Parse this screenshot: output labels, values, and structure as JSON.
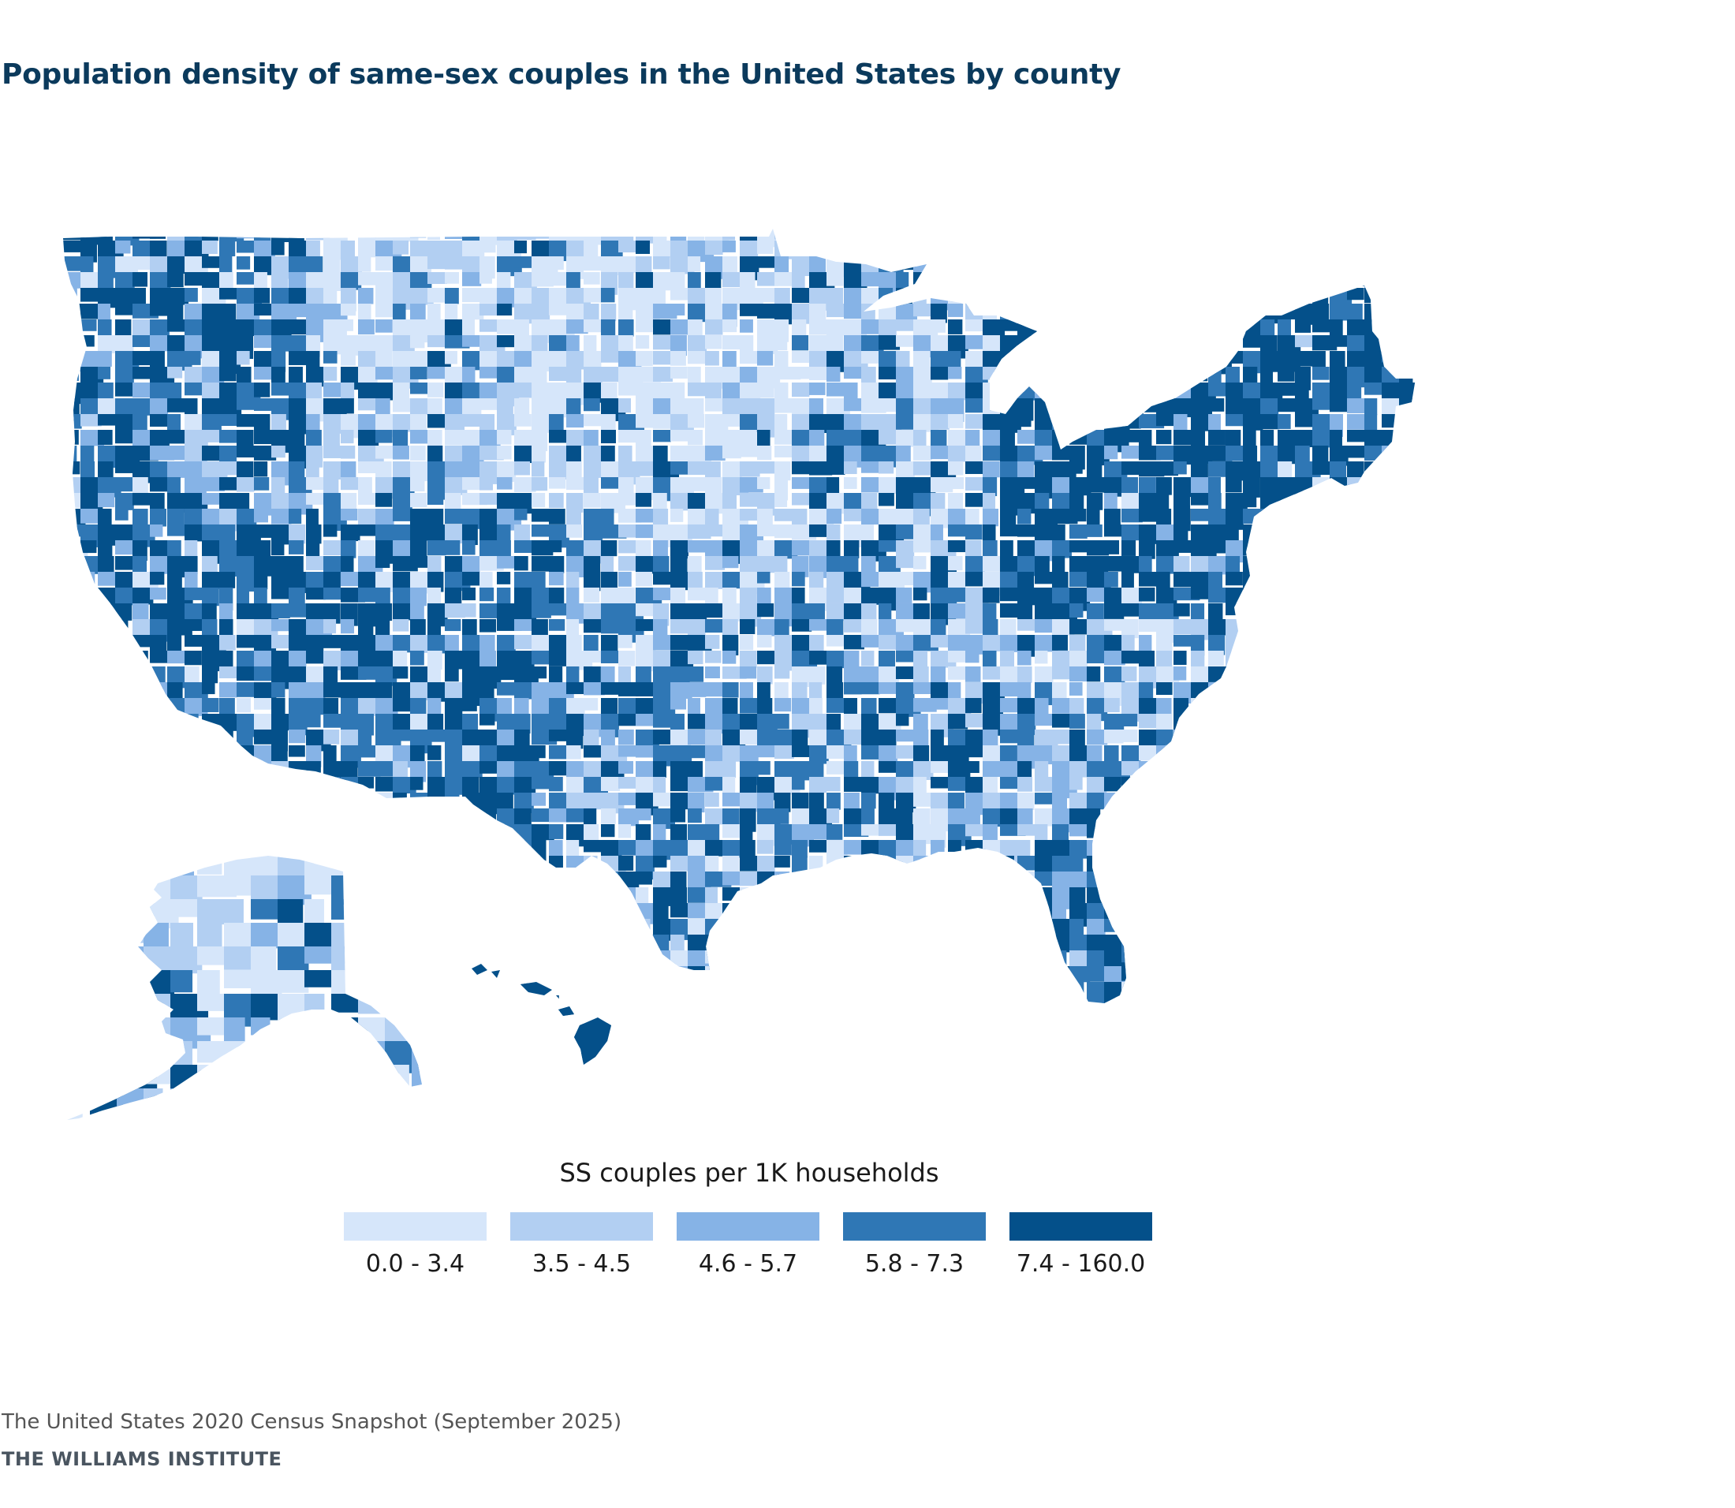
{
  "title": "Population density of same-sex couples in the United States by county",
  "legend": {
    "title": "SS couples per 1K households",
    "bins": [
      {
        "label": "0.0 - 3.4",
        "color": "#d6e6fa"
      },
      {
        "label": "3.5 - 4.5",
        "color": "#b2cff2"
      },
      {
        "label": "4.6 - 5.7",
        "color": "#86b3e6"
      },
      {
        "label": "5.8 - 7.3",
        "color": "#2f77b5"
      },
      {
        "label": "7.4 - 160.0",
        "color": "#04508a"
      }
    ]
  },
  "footer": {
    "source": "The United States 2020 Census Snapshot (September 2025)",
    "organization": "THE WILLIAMS INSTITUTE"
  }
}
